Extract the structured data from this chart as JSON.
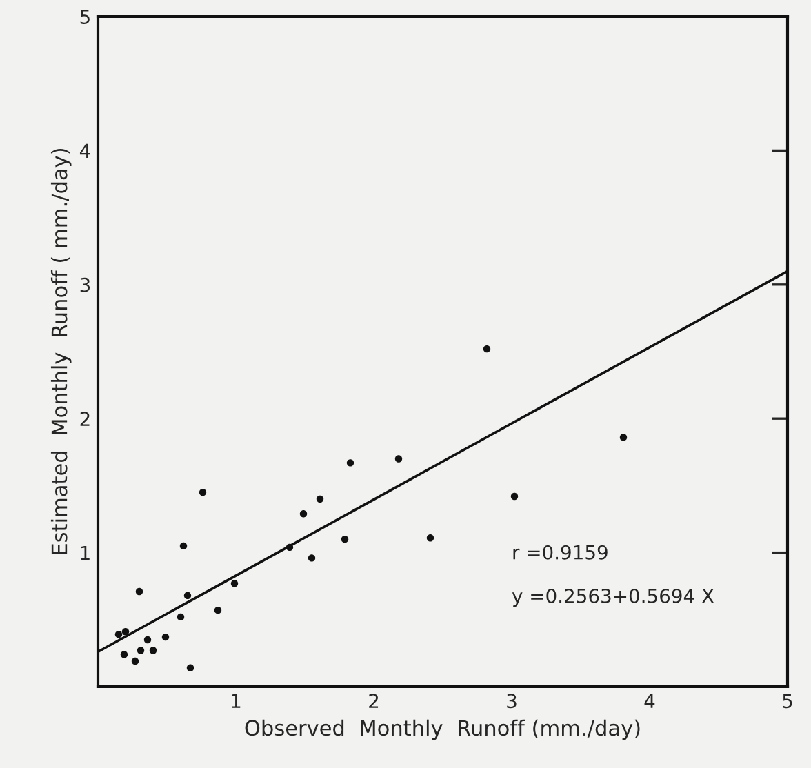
{
  "chart_data": {
    "type": "scatter",
    "xlabel": "Observed  Monthly  Runoff (mm./day)",
    "ylabel": "Estimated  Monthly  Runoff ( mm./day)",
    "xlim": [
      0,
      5
    ],
    "ylim": [
      0,
      5
    ],
    "xticks": [
      1,
      2,
      3,
      4,
      5
    ],
    "yticks": [
      1,
      2,
      3,
      4,
      5
    ],
    "grid": false,
    "series": [
      {
        "color": "#111111",
        "marker": "circle",
        "x": [
          0.15,
          0.2,
          0.19,
          0.27,
          0.31,
          0.36,
          0.4,
          0.49,
          0.3,
          0.6,
          0.65,
          0.62,
          0.67,
          0.76,
          0.87,
          0.99,
          1.39,
          1.49,
          1.55,
          1.61,
          1.79,
          1.83,
          2.18,
          2.41,
          2.82,
          3.02,
          3.81
        ],
        "values": [
          0.39,
          0.41,
          0.24,
          0.19,
          0.27,
          0.35,
          0.27,
          0.37,
          0.71,
          0.52,
          0.68,
          1.05,
          0.14,
          1.45,
          0.57,
          0.77,
          1.04,
          1.29,
          0.96,
          1.4,
          1.1,
          1.67,
          1.7,
          1.11,
          2.52,
          1.42,
          1.86
        ]
      },
      {
        "type": "line",
        "color": "#111111",
        "x": [
          0,
          5
        ],
        "values": [
          0.26,
          3.1
        ]
      }
    ],
    "annotations": [
      "r =0.9159",
      "y =0.2563+0.5694 X"
    ]
  }
}
